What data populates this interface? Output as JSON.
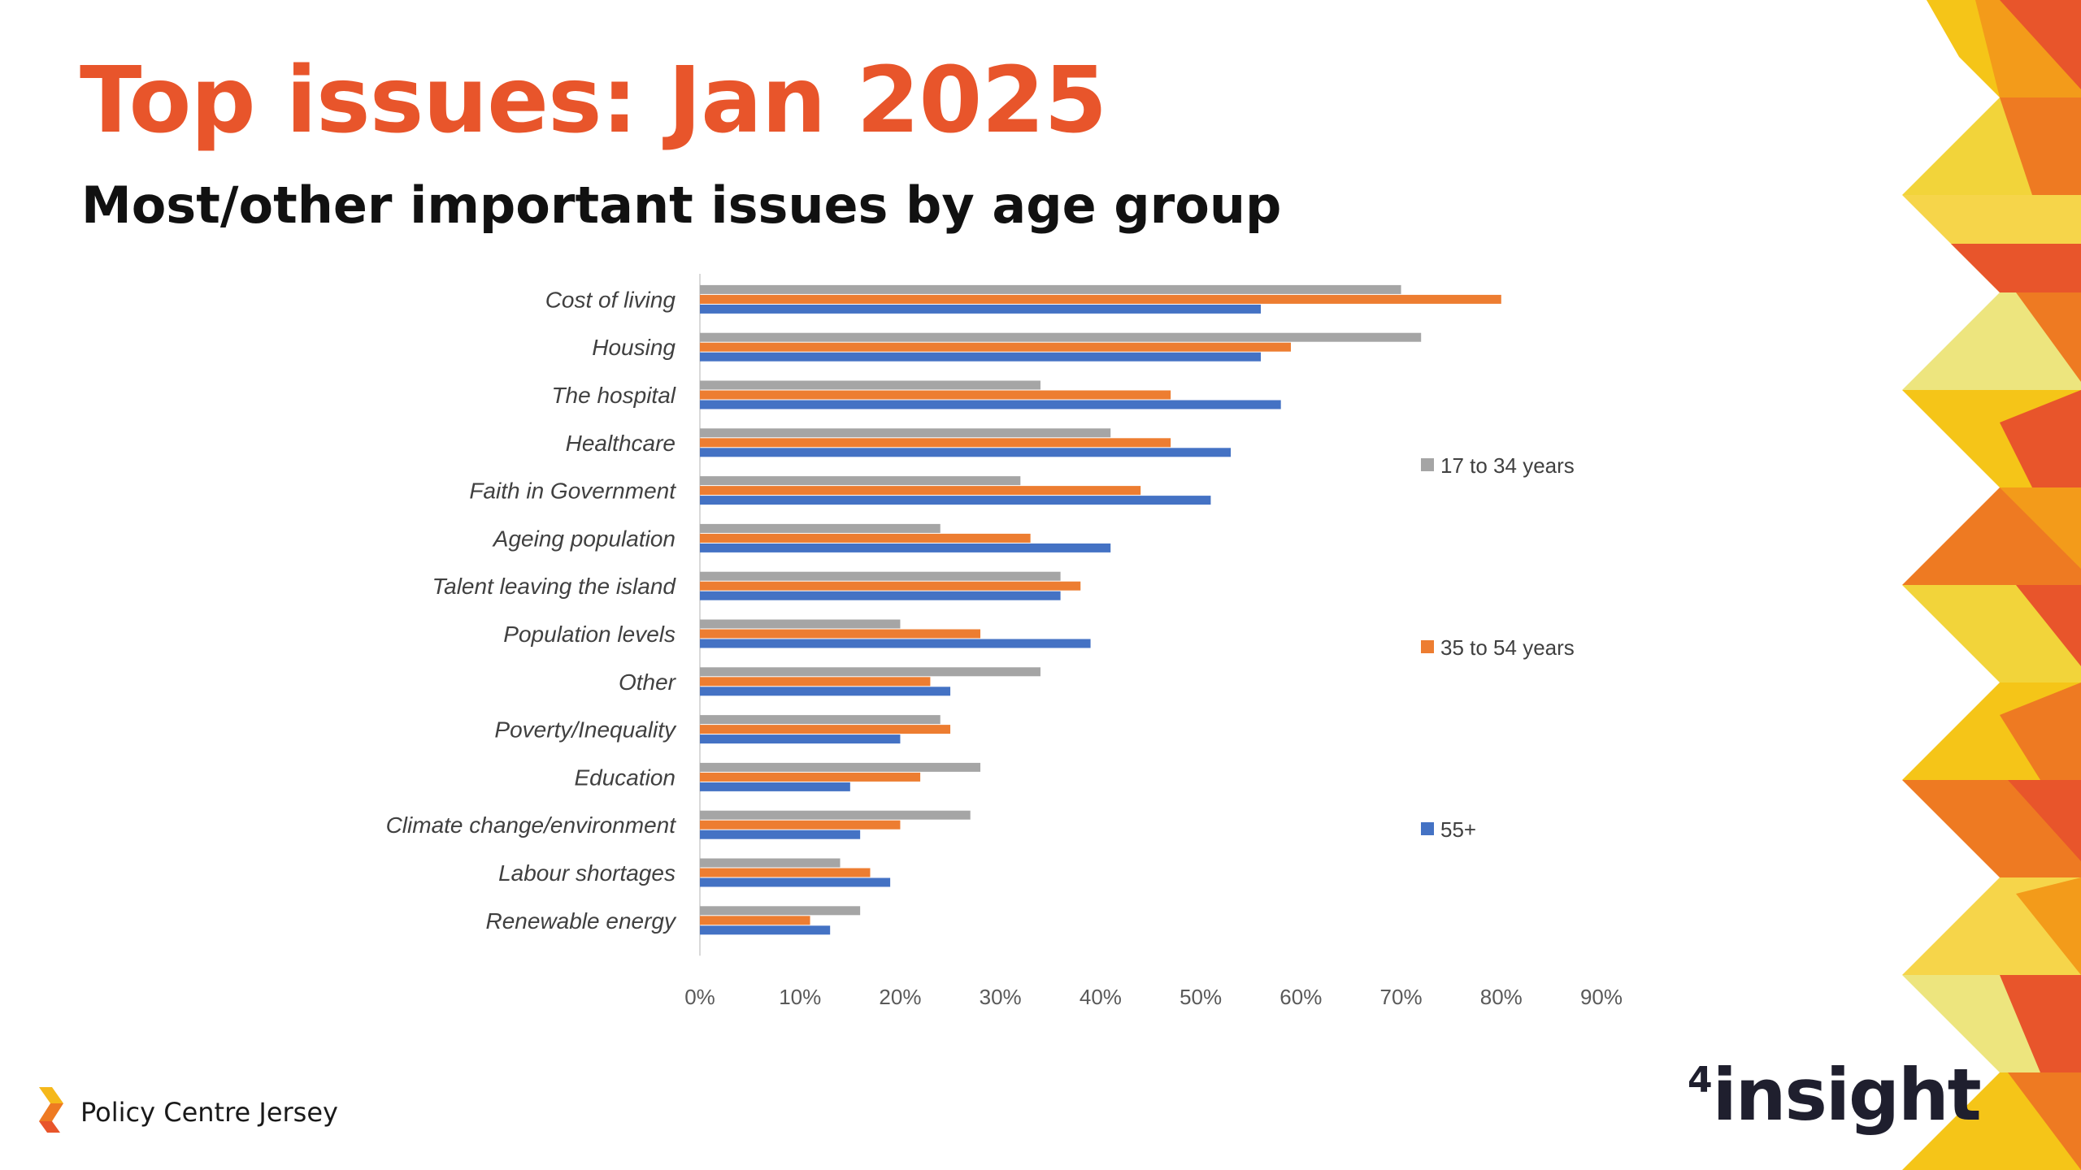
{
  "slide": {
    "title": "Top issues: Jan 2025",
    "subtitle_bold": "Most/other",
    "subtitle_rest": " important issues by age group",
    "footer_org": "Policy Centre Jersey",
    "brand_superscript": "4",
    "brand_name": "insight"
  },
  "colors": {
    "title": "#E8552B",
    "series_17_34": "#A5A5A5",
    "series_35_54": "#ED7D31",
    "series_55_plus": "#4472C4"
  },
  "chart_data": {
    "type": "bar",
    "orientation": "horizontal",
    "categories": [
      "Cost of living",
      "Housing ",
      "The hospital",
      "Healthcare",
      "Faith in Government",
      "Ageing population",
      "Talent leaving the island",
      "Population levels",
      "Other",
      "Poverty/Inequality",
      "Education",
      "Climate change/environment",
      "Labour shortages",
      "Renewable energy"
    ],
    "series": [
      {
        "name": "17 to 34 years",
        "color": "#A5A5A5",
        "values": [
          70,
          72,
          34,
          41,
          32,
          24,
          36,
          20,
          34,
          24,
          28,
          27,
          14,
          16
        ]
      },
      {
        "name": "35 to 54 years",
        "color": "#ED7D31",
        "values": [
          80,
          59,
          47,
          47,
          44,
          33,
          38,
          28,
          23,
          25,
          22,
          20,
          17,
          11
        ]
      },
      {
        "name": "55+",
        "color": "#4472C4",
        "values": [
          56,
          56,
          58,
          53,
          51,
          41,
          36,
          39,
          25,
          20,
          15,
          16,
          19,
          13
        ]
      }
    ],
    "xlim": [
      0,
      90
    ],
    "xticks": [
      "0%",
      "10%",
      "20%",
      "30%",
      "40%",
      "50%",
      "60%",
      "70%",
      "80%",
      "90%"
    ],
    "value_unit": "%",
    "grid": false,
    "legend_position": "right"
  }
}
